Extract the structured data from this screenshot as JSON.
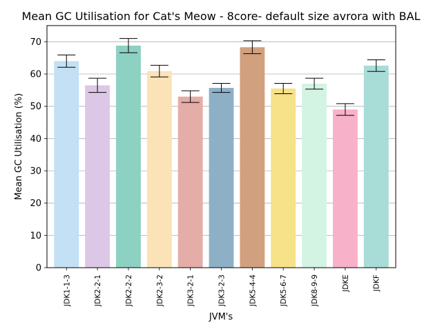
{
  "chart_data": {
    "type": "bar",
    "title": "Mean GC Utilisation for Cat's Meow - 8core- default size avrora with BAL",
    "xlabel": "JVM's",
    "ylabel": "Mean GC Utilisation (%)",
    "ylim": [
      0,
      75
    ],
    "yticks": [
      0,
      10,
      20,
      30,
      40,
      50,
      60,
      70
    ],
    "grid": "horizontal",
    "categories": [
      "JDK1-1-3",
      "JDK2-2-1",
      "JDK2-2-2",
      "JDK2-3-2",
      "JDK3-2-1",
      "JDK3-2-3",
      "JDK5-4-4",
      "JDK5-6-7",
      "JDK8-9-9",
      "JDKE",
      "JDKF"
    ],
    "values": [
      64.0,
      56.5,
      68.8,
      60.9,
      53.0,
      55.7,
      68.3,
      55.5,
      57.0,
      49.0,
      62.6
    ],
    "errors": [
      1.9,
      2.2,
      2.2,
      1.8,
      1.8,
      1.4,
      2.0,
      1.6,
      1.7,
      1.8,
      1.8
    ],
    "colors": [
      "#c3e0f4",
      "#dcc8e6",
      "#8dd1c2",
      "#fbe2b7",
      "#e4ada7",
      "#8eb0c6",
      "#d1a07f",
      "#f7e189",
      "#d3f3e3",
      "#f7b1c9",
      "#a8dcd6"
    ]
  }
}
